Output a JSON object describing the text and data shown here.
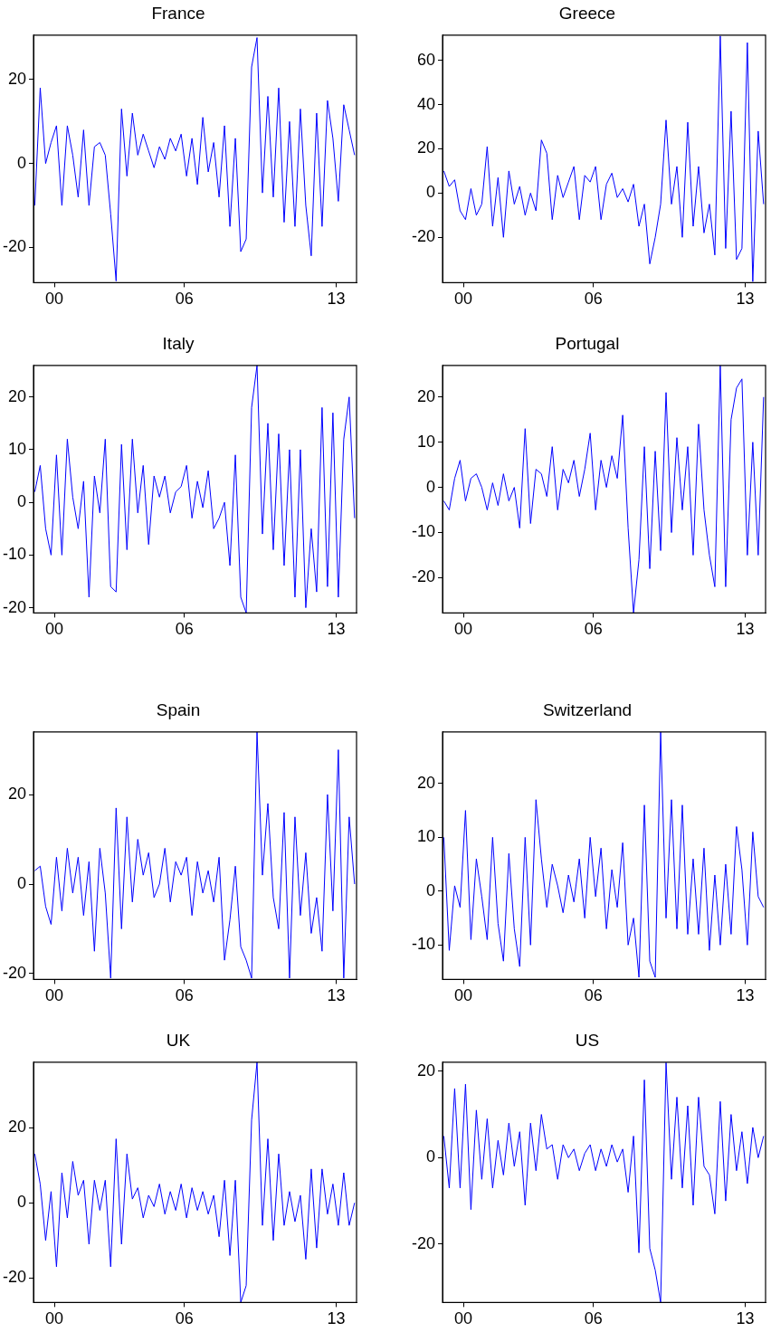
{
  "chart_data": [
    {
      "type": "line",
      "title": "France",
      "xlim": [
        1999.04,
        2013.94
      ],
      "xticks": [
        {
          "value": 2000,
          "label": "00"
        },
        {
          "value": 2006,
          "label": "06"
        },
        {
          "value": 2013,
          "label": "13"
        }
      ],
      "ylim": [
        -28.4,
        30.6
      ],
      "yticks": [
        -20,
        0,
        20
      ],
      "x": [
        1999.1,
        1999.35,
        1999.6,
        1999.85,
        2000.1,
        2000.35,
        2000.6,
        2000.85,
        2001.1,
        2001.35,
        2001.6,
        2001.85,
        2002.1,
        2002.35,
        2002.6,
        2002.85,
        2003.1,
        2003.35,
        2003.6,
        2003.85,
        2004.1,
        2004.35,
        2004.6,
        2004.85,
        2005.1,
        2005.35,
        2005.6,
        2005.85,
        2006.1,
        2006.35,
        2006.6,
        2006.85,
        2007.1,
        2007.35,
        2007.6,
        2007.85,
        2008.1,
        2008.35,
        2008.6,
        2008.85,
        2009.1,
        2009.35,
        2009.6,
        2009.85,
        2010.1,
        2010.35,
        2010.6,
        2010.85,
        2011.1,
        2011.35,
        2011.6,
        2011.85,
        2012.1,
        2012.35,
        2012.6,
        2012.85,
        2013.1,
        2013.35,
        2013.6,
        2013.85
      ],
      "series": [
        {
          "color": "#0000ff",
          "values": [
            -10,
            18,
            0,
            5,
            9,
            -10,
            9,
            2,
            -8,
            8,
            -10,
            4,
            5,
            2,
            -12,
            -28,
            13,
            -3,
            12,
            2,
            7,
            3,
            -1,
            4,
            1,
            6,
            3,
            7,
            -3,
            6,
            -5,
            11,
            -2,
            5,
            -8,
            9,
            -15,
            6,
            -21,
            -18,
            23,
            30,
            -7,
            16,
            -8,
            18,
            -14,
            10,
            -15,
            13,
            -10,
            -22,
            12,
            -15,
            15,
            6,
            -9,
            14,
            8,
            2
          ]
        }
      ]
    },
    {
      "type": "line",
      "title": "Greece",
      "xlim": [
        1999.04,
        2013.94
      ],
      "xticks": [
        {
          "value": 2000,
          "label": "00"
        },
        {
          "value": 2006,
          "label": "06"
        },
        {
          "value": 2013,
          "label": "13"
        }
      ],
      "ylim": [
        -40.5,
        71.4
      ],
      "yticks": [
        -20,
        0,
        20,
        40,
        60
      ],
      "x": [
        1999.1,
        1999.35,
        1999.6,
        1999.85,
        2000.1,
        2000.35,
        2000.6,
        2000.85,
        2001.1,
        2001.35,
        2001.6,
        2001.85,
        2002.1,
        2002.35,
        2002.6,
        2002.85,
        2003.1,
        2003.35,
        2003.6,
        2003.85,
        2004.1,
        2004.35,
        2004.6,
        2004.85,
        2005.1,
        2005.35,
        2005.6,
        2005.85,
        2006.1,
        2006.35,
        2006.6,
        2006.85,
        2007.1,
        2007.35,
        2007.6,
        2007.85,
        2008.1,
        2008.35,
        2008.6,
        2008.85,
        2009.1,
        2009.35,
        2009.6,
        2009.85,
        2010.1,
        2010.35,
        2010.6,
        2010.85,
        2011.1,
        2011.35,
        2011.6,
        2011.85,
        2012.1,
        2012.35,
        2012.6,
        2012.85,
        2013.1,
        2013.35,
        2013.6,
        2013.85
      ],
      "series": [
        {
          "color": "#0000ff",
          "values": [
            10,
            3,
            6,
            -8,
            -12,
            2,
            -10,
            -5,
            21,
            -15,
            7,
            -20,
            10,
            -5,
            3,
            -10,
            0,
            -8,
            24,
            18,
            -12,
            8,
            -2,
            5,
            12,
            -12,
            8,
            5,
            12,
            -12,
            4,
            9,
            -2,
            2,
            -4,
            4,
            -15,
            -5,
            -32,
            -20,
            -5,
            33,
            -5,
            12,
            -20,
            32,
            -15,
            12,
            -18,
            -5,
            -28,
            71,
            -25,
            37,
            -30,
            -25,
            68,
            -40,
            28,
            -5
          ]
        }
      ]
    },
    {
      "type": "line",
      "title": "Italy",
      "xlim": [
        1999.04,
        2013.94
      ],
      "xticks": [
        {
          "value": 2000,
          "label": "00"
        },
        {
          "value": 2006,
          "label": "06"
        },
        {
          "value": 2013,
          "label": "13"
        }
      ],
      "ylim": [
        -21,
        26
      ],
      "yticks": [
        -20,
        -10,
        0,
        10,
        20
      ],
      "x": [
        1999.1,
        1999.35,
        1999.6,
        1999.85,
        2000.1,
        2000.35,
        2000.6,
        2000.85,
        2001.1,
        2001.35,
        2001.6,
        2001.85,
        2002.1,
        2002.35,
        2002.6,
        2002.85,
        2003.1,
        2003.35,
        2003.6,
        2003.85,
        2004.1,
        2004.35,
        2004.6,
        2004.85,
        2005.1,
        2005.35,
        2005.6,
        2005.85,
        2006.1,
        2006.35,
        2006.6,
        2006.85,
        2007.1,
        2007.35,
        2007.6,
        2007.85,
        2008.1,
        2008.35,
        2008.6,
        2008.85,
        2009.1,
        2009.35,
        2009.6,
        2009.85,
        2010.1,
        2010.35,
        2010.6,
        2010.85,
        2011.1,
        2011.35,
        2011.6,
        2011.85,
        2012.1,
        2012.35,
        2012.6,
        2012.85,
        2013.1,
        2013.35,
        2013.6,
        2013.85
      ],
      "series": [
        {
          "color": "#0000ff",
          "values": [
            2,
            7,
            -5,
            -10,
            9,
            -10,
            12,
            1,
            -5,
            4,
            -18,
            5,
            -2,
            12,
            -16,
            -17,
            11,
            -9,
            12,
            -2,
            7,
            -8,
            5,
            1,
            5,
            -2,
            2,
            3,
            7,
            -3,
            4,
            -1,
            6,
            -5,
            -3,
            0,
            -12,
            9,
            -18,
            -21,
            18,
            26,
            -6,
            15,
            -9,
            13,
            -12,
            10,
            -18,
            10,
            -20,
            -5,
            -17,
            18,
            -16,
            17,
            -18,
            12,
            20,
            -3
          ]
        }
      ]
    },
    {
      "type": "line",
      "title": "Portugal",
      "xlim": [
        1999.04,
        2013.94
      ],
      "xticks": [
        {
          "value": 2000,
          "label": "00"
        },
        {
          "value": 2006,
          "label": "06"
        },
        {
          "value": 2013,
          "label": "13"
        }
      ],
      "ylim": [
        -27.8,
        27
      ],
      "yticks": [
        -20,
        -10,
        0,
        10,
        20
      ],
      "x": [
        1999.1,
        1999.35,
        1999.6,
        1999.85,
        2000.1,
        2000.35,
        2000.6,
        2000.85,
        2001.1,
        2001.35,
        2001.6,
        2001.85,
        2002.1,
        2002.35,
        2002.6,
        2002.85,
        2003.1,
        2003.35,
        2003.6,
        2003.85,
        2004.1,
        2004.35,
        2004.6,
        2004.85,
        2005.1,
        2005.35,
        2005.6,
        2005.85,
        2006.1,
        2006.35,
        2006.6,
        2006.85,
        2007.1,
        2007.35,
        2007.6,
        2007.85,
        2008.1,
        2008.35,
        2008.6,
        2008.85,
        2009.1,
        2009.35,
        2009.6,
        2009.85,
        2010.1,
        2010.35,
        2010.6,
        2010.85,
        2011.1,
        2011.35,
        2011.6,
        2011.85,
        2012.1,
        2012.35,
        2012.6,
        2012.85,
        2013.1,
        2013.35,
        2013.6,
        2013.85
      ],
      "series": [
        {
          "color": "#0000ff",
          "values": [
            -3,
            -5,
            2,
            6,
            -3,
            2,
            3,
            0,
            -5,
            1,
            -4,
            3,
            -3,
            0,
            -9,
            13,
            -8,
            4,
            3,
            -2,
            9,
            -5,
            4,
            1,
            6,
            -2,
            4,
            12,
            -5,
            6,
            0,
            7,
            2,
            16,
            -9,
            -27.8,
            -16,
            9,
            -18,
            8,
            -14,
            21,
            -10,
            11,
            -5,
            9,
            -15,
            14,
            -5,
            -15,
            -22,
            27,
            -22,
            15,
            22,
            24,
            -15,
            10,
            -15,
            20
          ]
        }
      ]
    },
    {
      "type": "line",
      "title": "Spain",
      "xlim": [
        1999.04,
        2013.94
      ],
      "xticks": [
        {
          "value": 2000,
          "label": "00"
        },
        {
          "value": 2006,
          "label": "06"
        },
        {
          "value": 2013,
          "label": "13"
        }
      ],
      "ylim": [
        -21.3,
        34
      ],
      "yticks": [
        -20,
        0,
        20
      ],
      "x": [
        1999.1,
        1999.35,
        1999.6,
        1999.85,
        2000.1,
        2000.35,
        2000.6,
        2000.85,
        2001.1,
        2001.35,
        2001.6,
        2001.85,
        2002.1,
        2002.35,
        2002.6,
        2002.85,
        2003.1,
        2003.35,
        2003.6,
        2003.85,
        2004.1,
        2004.35,
        2004.6,
        2004.85,
        2005.1,
        2005.35,
        2005.6,
        2005.85,
        2006.1,
        2006.35,
        2006.6,
        2006.85,
        2007.1,
        2007.35,
        2007.6,
        2007.85,
        2008.1,
        2008.35,
        2008.6,
        2008.85,
        2009.1,
        2009.35,
        2009.6,
        2009.85,
        2010.1,
        2010.35,
        2010.6,
        2010.85,
        2011.1,
        2011.35,
        2011.6,
        2011.85,
        2012.1,
        2012.35,
        2012.6,
        2012.85,
        2013.1,
        2013.35,
        2013.6,
        2013.85
      ],
      "series": [
        {
          "color": "#0000ff",
          "values": [
            3,
            4,
            -5,
            -9,
            6,
            -6,
            8,
            -2,
            6,
            -7,
            5,
            -15,
            8,
            -2,
            -21,
            17,
            -10,
            15,
            -4,
            10,
            2,
            7,
            -3,
            0,
            8,
            -4,
            5,
            2,
            6,
            -7,
            5,
            -2,
            3,
            -4,
            6,
            -17,
            -8,
            4,
            -14,
            -17,
            -21,
            34,
            2,
            18,
            -3,
            -10,
            16,
            -21,
            15,
            -7,
            7,
            -11,
            -3,
            -15,
            20,
            -6,
            30,
            -21,
            15,
            0
          ]
        }
      ]
    },
    {
      "type": "line",
      "title": "Switzerland",
      "xlim": [
        1999.04,
        2013.94
      ],
      "xticks": [
        {
          "value": 2000,
          "label": "00"
        },
        {
          "value": 2006,
          "label": "06"
        },
        {
          "value": 2013,
          "label": "13"
        }
      ],
      "ylim": [
        -16.4,
        29.6
      ],
      "yticks": [
        -10,
        0,
        10,
        20
      ],
      "x": [
        1999.1,
        1999.35,
        1999.6,
        1999.85,
        2000.1,
        2000.35,
        2000.6,
        2000.85,
        2001.1,
        2001.35,
        2001.6,
        2001.85,
        2002.1,
        2002.35,
        2002.6,
        2002.85,
        2003.1,
        2003.35,
        2003.6,
        2003.85,
        2004.1,
        2004.35,
        2004.6,
        2004.85,
        2005.1,
        2005.35,
        2005.6,
        2005.85,
        2006.1,
        2006.35,
        2006.6,
        2006.85,
        2007.1,
        2007.35,
        2007.6,
        2007.85,
        2008.1,
        2008.35,
        2008.6,
        2008.85,
        2009.1,
        2009.35,
        2009.6,
        2009.85,
        2010.1,
        2010.35,
        2010.6,
        2010.85,
        2011.1,
        2011.35,
        2011.6,
        2011.85,
        2012.1,
        2012.35,
        2012.6,
        2012.85,
        2013.1,
        2013.35,
        2013.6,
        2013.85
      ],
      "series": [
        {
          "color": "#0000ff",
          "values": [
            10,
            -11,
            1,
            -3,
            15,
            -9,
            6,
            -1,
            -9,
            10,
            -6,
            -13,
            7,
            -7,
            -14,
            10,
            -10,
            17,
            6,
            -3,
            5,
            1,
            -4,
            3,
            -2,
            6,
            -5,
            10,
            -1,
            8,
            -7,
            4,
            -3,
            9,
            -10,
            -5,
            -16,
            16,
            -13,
            -16,
            29.6,
            -5,
            17,
            -7,
            16,
            -8,
            6,
            -8,
            8,
            -11,
            3,
            -10,
            5,
            -8,
            12,
            4,
            -10,
            11,
            -1,
            -3
          ]
        }
      ]
    },
    {
      "type": "line",
      "title": "UK",
      "xlim": [
        1999.04,
        2013.94
      ],
      "xticks": [
        {
          "value": 2000,
          "label": "00"
        },
        {
          "value": 2006,
          "label": "06"
        },
        {
          "value": 2013,
          "label": "13"
        }
      ],
      "ylim": [
        -26.5,
        37.4
      ],
      "yticks": [
        -20,
        0,
        20
      ],
      "x": [
        1999.1,
        1999.35,
        1999.6,
        1999.85,
        2000.1,
        2000.35,
        2000.6,
        2000.85,
        2001.1,
        2001.35,
        2001.6,
        2001.85,
        2002.1,
        2002.35,
        2002.6,
        2002.85,
        2003.1,
        2003.35,
        2003.6,
        2003.85,
        2004.1,
        2004.35,
        2004.6,
        2004.85,
        2005.1,
        2005.35,
        2005.6,
        2005.85,
        2006.1,
        2006.35,
        2006.6,
        2006.85,
        2007.1,
        2007.35,
        2007.6,
        2007.85,
        2008.1,
        2008.35,
        2008.6,
        2008.85,
        2009.1,
        2009.35,
        2009.6,
        2009.85,
        2010.1,
        2010.35,
        2010.6,
        2010.85,
        2011.1,
        2011.35,
        2011.6,
        2011.85,
        2012.1,
        2012.35,
        2012.6,
        2012.85,
        2013.1,
        2013.35,
        2013.6,
        2013.85
      ],
      "series": [
        {
          "color": "#0000ff",
          "values": [
            13,
            5,
            -10,
            3,
            -17,
            8,
            -4,
            11,
            2,
            6,
            -11,
            6,
            -2,
            6,
            -17,
            17,
            -11,
            13,
            1,
            4,
            -4,
            2,
            -1,
            5,
            -3,
            3,
            -2,
            5,
            -4,
            4,
            -2,
            3,
            -3,
            2,
            -9,
            6,
            -14,
            6,
            -26.5,
            -22,
            22,
            37.4,
            -6,
            17,
            -10,
            13,
            -6,
            3,
            -5,
            2,
            -15,
            9,
            -12,
            9,
            -3,
            5,
            -6,
            8,
            -6,
            0
          ]
        }
      ]
    },
    {
      "type": "line",
      "title": "US",
      "xlim": [
        1999.04,
        2013.94
      ],
      "xticks": [
        {
          "value": 2000,
          "label": "00"
        },
        {
          "value": 2006,
          "label": "06"
        },
        {
          "value": 2013,
          "label": "13"
        }
      ],
      "ylim": [
        -33.5,
        22.1
      ],
      "yticks": [
        -20,
        0,
        20
      ],
      "x": [
        1999.1,
        1999.35,
        1999.6,
        1999.85,
        2000.1,
        2000.35,
        2000.6,
        2000.85,
        2001.1,
        2001.35,
        2001.6,
        2001.85,
        2002.1,
        2002.35,
        2002.6,
        2002.85,
        2003.1,
        2003.35,
        2003.6,
        2003.85,
        2004.1,
        2004.35,
        2004.6,
        2004.85,
        2005.1,
        2005.35,
        2005.6,
        2005.85,
        2006.1,
        2006.35,
        2006.6,
        2006.85,
        2007.1,
        2007.35,
        2007.6,
        2007.85,
        2008.1,
        2008.35,
        2008.6,
        2008.85,
        2009.1,
        2009.35,
        2009.6,
        2009.85,
        2010.1,
        2010.35,
        2010.6,
        2010.85,
        2011.1,
        2011.35,
        2011.6,
        2011.85,
        2012.1,
        2012.35,
        2012.6,
        2012.85,
        2013.1,
        2013.35,
        2013.6,
        2013.85
      ],
      "series": [
        {
          "color": "#0000ff",
          "values": [
            5,
            -7,
            16,
            -7,
            17,
            -12,
            11,
            -5,
            9,
            -7,
            4,
            -4,
            8,
            -2,
            6,
            -11,
            8,
            -3,
            10,
            2,
            3,
            -5,
            3,
            0,
            2,
            -3,
            1,
            3,
            -3,
            2,
            -2,
            3,
            -1,
            2,
            -8,
            5,
            -22,
            18,
            -21,
            -26,
            -33.5,
            22,
            -5,
            14,
            -7,
            12,
            -11,
            14,
            -2,
            -4,
            -13,
            13,
            -10,
            10,
            -3,
            6,
            -6,
            7,
            0,
            5
          ]
        }
      ]
    }
  ]
}
